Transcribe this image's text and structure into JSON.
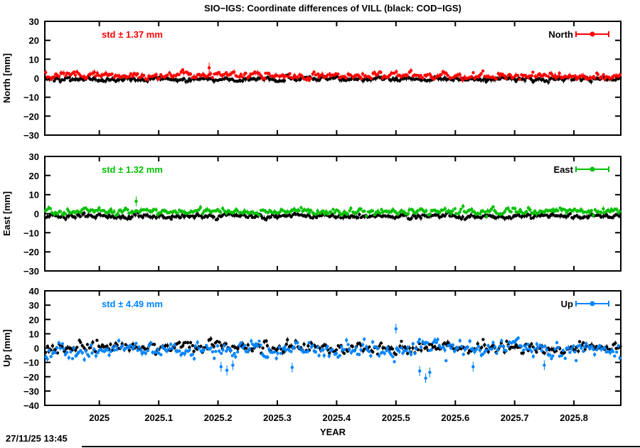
{
  "title": "SIO−IGS: Coordinate differences of VILL (black: COD−IGS)",
  "timestamp": "27/11/25 13:45",
  "chart_data": {
    "type": "scatter",
    "xlabel": "YEAR",
    "x_range": [
      2024.908,
      2025.879
    ],
    "x_ticks": [
      2025,
      2025.1,
      2025.2,
      2025.3,
      2025.4,
      2025.5,
      2025.6,
      2025.7,
      2025.8
    ],
    "x_tick_labels": [
      "2025",
      "2025.1",
      "2025.2",
      "2025.3",
      "2025.4",
      "2025.5",
      "2025.6",
      "2025.7",
      "2025.8"
    ],
    "grid": false,
    "legend_position": "top-right-inside",
    "panels": [
      {
        "name": "north",
        "ylabel": "North [mm]",
        "ylim": [
          -30,
          30
        ],
        "y_ticks": [
          -30,
          -20,
          -10,
          0,
          10,
          20,
          30
        ],
        "std_label": "std ± 1.37 mm",
        "std_mm": 1.37,
        "legend_label": "North",
        "color": "#ff0000",
        "series": [
          {
            "name": "COD-IGS",
            "color": "#000000",
            "mean": -0.5,
            "std": 0.9,
            "n": 345,
            "outliers": []
          },
          {
            "name": "SIO-IGS",
            "color": "#ff0000",
            "mean": 1.3,
            "std": 1.37,
            "n": 345,
            "outliers": [
              {
                "x": 2025.185,
                "y": 5.5
              }
            ]
          }
        ]
      },
      {
        "name": "east",
        "ylabel": "East [mm]",
        "ylim": [
          -30,
          30
        ],
        "y_ticks": [
          -30,
          -20,
          -10,
          0,
          10,
          20,
          30
        ],
        "std_label": "std ± 1.32 mm",
        "std_mm": 1.32,
        "legend_label": "East",
        "color": "#00c000",
        "series": [
          {
            "name": "COD-IGS",
            "color": "#000000",
            "mean": -1.4,
            "std": 0.9,
            "n": 345,
            "outliers": []
          },
          {
            "name": "SIO-IGS",
            "color": "#00c000",
            "mean": 1.2,
            "std": 1.32,
            "n": 345,
            "outliers": [
              {
                "x": 2025.062,
                "y": 6.5
              }
            ]
          }
        ]
      },
      {
        "name": "up",
        "ylabel": "Up [mm]",
        "ylim": [
          -40,
          40
        ],
        "y_ticks": [
          -40,
          -30,
          -20,
          -10,
          0,
          10,
          20,
          30,
          40
        ],
        "std_label": "std ± 4.49 mm",
        "std_mm": 4.49,
        "legend_label": "Up",
        "color": "#0084ff",
        "series": [
          {
            "name": "COD-IGS",
            "color": "#000000",
            "mean": 0.3,
            "std": 3.0,
            "n": 345,
            "outliers": []
          },
          {
            "name": "SIO-IGS",
            "color": "#0084ff",
            "mean": -1.0,
            "std": 4.49,
            "n": 345,
            "outliers": [
              {
                "x": 2025.205,
                "y": -13
              },
              {
                "x": 2025.215,
                "y": -15.5
              },
              {
                "x": 2025.225,
                "y": -12
              },
              {
                "x": 2025.325,
                "y": -13.5
              },
              {
                "x": 2025.5,
                "y": 13.5
              },
              {
                "x": 2025.54,
                "y": -16
              },
              {
                "x": 2025.55,
                "y": -21
              },
              {
                "x": 2025.557,
                "y": -17
              },
              {
                "x": 2025.63,
                "y": -13
              },
              {
                "x": 2025.75,
                "y": -12
              }
            ]
          }
        ]
      }
    ]
  }
}
